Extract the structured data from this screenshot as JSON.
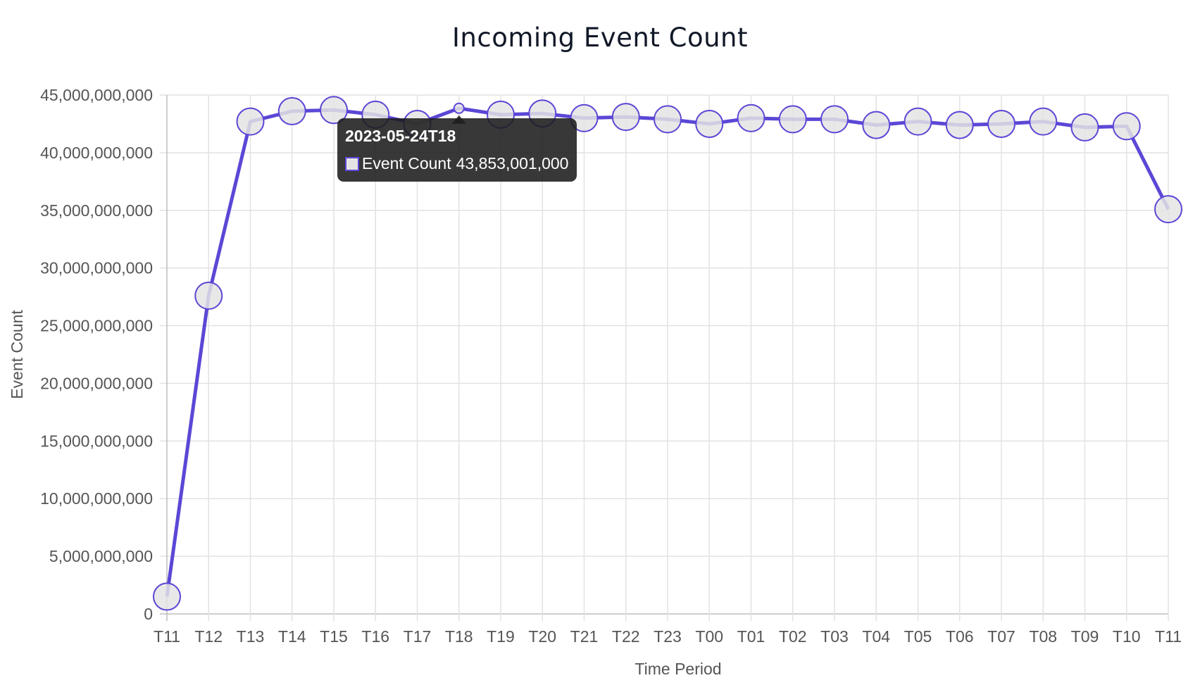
{
  "chart_data": {
    "type": "line",
    "title": "Incoming Event Count",
    "xlabel": "Time Period",
    "ylabel": "Event Count",
    "ylim": [
      0,
      45000000000
    ],
    "y_ticks": [
      "0",
      "5,000,000,000",
      "10,000,000,000",
      "15,000,000,000",
      "20,000,000,000",
      "25,000,000,000",
      "30,000,000,000",
      "35,000,000,000",
      "40,000,000,000",
      "45,000,000,000"
    ],
    "categories": [
      "T11",
      "T12",
      "T13",
      "T14",
      "T15",
      "T16",
      "T17",
      "T18",
      "T19",
      "T20",
      "T21",
      "T22",
      "T23",
      "T00",
      "T01",
      "T02",
      "T03",
      "T04",
      "T05",
      "T06",
      "T07",
      "T08",
      "T09",
      "T10",
      "T11"
    ],
    "series": [
      {
        "name": "Event Count",
        "color": "#5b47d6",
        "point_fill": "#e4e4e4",
        "values": [
          1500000000,
          27600000000,
          42700000000,
          43600000000,
          43700000000,
          43300000000,
          42500000000,
          43853001000,
          43300000000,
          43400000000,
          43000000000,
          43100000000,
          42900000000,
          42500000000,
          43000000000,
          42900000000,
          42900000000,
          42400000000,
          42700000000,
          42400000000,
          42500000000,
          42700000000,
          42200000000,
          42300000000,
          35100000000
        ]
      }
    ],
    "grid": true,
    "tooltip": {
      "title": "2023-05-24T18",
      "series_label": "Event Count",
      "value": "43,853,001,000",
      "index": 7
    }
  }
}
